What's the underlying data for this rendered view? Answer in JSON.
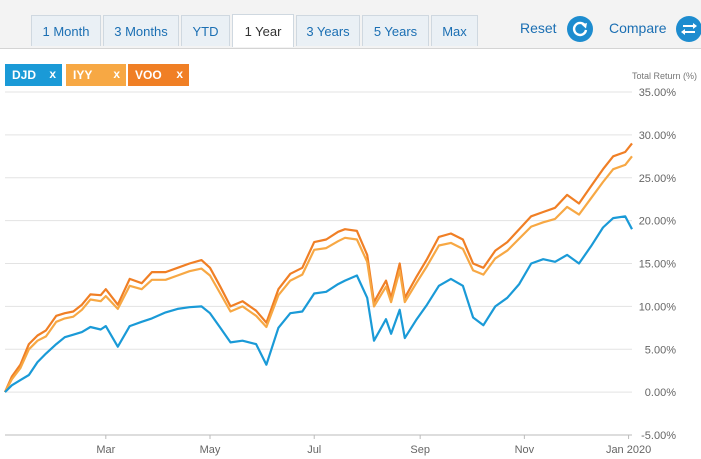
{
  "tabs": [
    {
      "label": "1 Month",
      "active": false
    },
    {
      "label": "3 Months",
      "active": false
    },
    {
      "label": "YTD",
      "active": false
    },
    {
      "label": "1 Year",
      "active": true
    },
    {
      "label": "3 Years",
      "active": false
    },
    {
      "label": "5 Years",
      "active": false
    },
    {
      "label": "Max",
      "active": false
    }
  ],
  "actions": {
    "reset": "Reset",
    "compare": "Compare"
  },
  "legend": [
    {
      "name": "DJD",
      "color": "#1a9ad7",
      "close": "x"
    },
    {
      "name": "IYY",
      "color": "#f7a844",
      "close": "x"
    },
    {
      "name": "VOO",
      "color": "#f07f25",
      "close": "x"
    }
  ],
  "chart_data": {
    "type": "line",
    "ylabel": "Total Return (%)",
    "ylim": [
      -5,
      35
    ],
    "y_ticks": [
      "35.00%",
      "30.00%",
      "25.00%",
      "20.00%",
      "15.00%",
      "10.00%",
      "5.00%",
      "0.00%",
      "-5.00%"
    ],
    "x_tick_labels": [
      "Mar",
      "May",
      "Jul",
      "Sep",
      "Nov",
      "Jan 2020"
    ],
    "x_range": [
      "2019-01-01",
      "2020-01-03"
    ],
    "x_ticks": [
      "2019-03-01",
      "2019-05-01",
      "2019-07-01",
      "2019-09-01",
      "2019-11-01",
      "2020-01-01"
    ],
    "grid": true,
    "series": [
      {
        "name": "VOO",
        "color": "#f07f25",
        "points": [
          [
            "2019-01-01",
            0.0
          ],
          [
            "2019-01-05",
            1.8
          ],
          [
            "2019-01-10",
            3.2
          ],
          [
            "2019-01-15",
            5.6
          ],
          [
            "2019-01-20",
            6.6
          ],
          [
            "2019-01-25",
            7.2
          ],
          [
            "2019-01-31",
            8.9
          ],
          [
            "2019-02-05",
            9.2
          ],
          [
            "2019-02-10",
            9.4
          ],
          [
            "2019-02-15",
            10.2
          ],
          [
            "2019-02-20",
            11.4
          ],
          [
            "2019-02-26",
            11.3
          ],
          [
            "2019-03-01",
            12.0
          ],
          [
            "2019-03-08",
            10.2
          ],
          [
            "2019-03-15",
            13.2
          ],
          [
            "2019-03-22",
            12.7
          ],
          [
            "2019-03-28",
            14.0
          ],
          [
            "2019-04-05",
            14.0
          ],
          [
            "2019-04-12",
            14.5
          ],
          [
            "2019-04-19",
            15.0
          ],
          [
            "2019-04-26",
            15.4
          ],
          [
            "2019-05-01",
            14.5
          ],
          [
            "2019-05-07",
            12.3
          ],
          [
            "2019-05-13",
            10.0
          ],
          [
            "2019-05-20",
            10.6
          ],
          [
            "2019-05-28",
            9.5
          ],
          [
            "2019-06-03",
            8.1
          ],
          [
            "2019-06-10",
            12.0
          ],
          [
            "2019-06-17",
            13.8
          ],
          [
            "2019-06-24",
            14.5
          ],
          [
            "2019-07-01",
            17.5
          ],
          [
            "2019-07-08",
            17.8
          ],
          [
            "2019-07-15",
            18.7
          ],
          [
            "2019-07-19",
            19.0
          ],
          [
            "2019-07-26",
            18.8
          ],
          [
            "2019-08-01",
            16.0
          ],
          [
            "2019-08-05",
            10.5
          ],
          [
            "2019-08-12",
            13.0
          ],
          [
            "2019-08-15",
            11.0
          ],
          [
            "2019-08-20",
            15.0
          ],
          [
            "2019-08-23",
            11.0
          ],
          [
            "2019-08-30",
            13.5
          ],
          [
            "2019-09-05",
            15.5
          ],
          [
            "2019-09-12",
            18.1
          ],
          [
            "2019-09-19",
            18.5
          ],
          [
            "2019-09-26",
            17.8
          ],
          [
            "2019-10-02",
            15.0
          ],
          [
            "2019-10-08",
            14.5
          ],
          [
            "2019-10-15",
            16.5
          ],
          [
            "2019-10-22",
            17.5
          ],
          [
            "2019-10-29",
            19.0
          ],
          [
            "2019-11-05",
            20.5
          ],
          [
            "2019-11-12",
            21.0
          ],
          [
            "2019-11-19",
            21.5
          ],
          [
            "2019-11-26",
            23.0
          ],
          [
            "2019-12-03",
            22.0
          ],
          [
            "2019-12-10",
            24.0
          ],
          [
            "2019-12-17",
            26.0
          ],
          [
            "2019-12-23",
            27.5
          ],
          [
            "2019-12-30",
            28.0
          ],
          [
            "2020-01-03",
            29.0
          ]
        ]
      },
      {
        "name": "IYY",
        "color": "#f7a844",
        "points": [
          [
            "2019-01-01",
            0.0
          ],
          [
            "2019-01-05",
            1.5
          ],
          [
            "2019-01-10",
            2.8
          ],
          [
            "2019-01-15",
            5.0
          ],
          [
            "2019-01-20",
            6.0
          ],
          [
            "2019-01-25",
            6.5
          ],
          [
            "2019-01-31",
            8.2
          ],
          [
            "2019-02-05",
            8.6
          ],
          [
            "2019-02-10",
            8.8
          ],
          [
            "2019-02-15",
            9.6
          ],
          [
            "2019-02-20",
            10.8
          ],
          [
            "2019-02-26",
            10.6
          ],
          [
            "2019-03-01",
            11.2
          ],
          [
            "2019-03-08",
            9.7
          ],
          [
            "2019-03-15",
            12.4
          ],
          [
            "2019-03-22",
            12.0
          ],
          [
            "2019-03-28",
            13.1
          ],
          [
            "2019-04-05",
            13.1
          ],
          [
            "2019-04-12",
            13.6
          ],
          [
            "2019-04-19",
            14.1
          ],
          [
            "2019-04-26",
            14.4
          ],
          [
            "2019-05-01",
            13.6
          ],
          [
            "2019-05-07",
            11.5
          ],
          [
            "2019-05-13",
            9.4
          ],
          [
            "2019-05-20",
            10.0
          ],
          [
            "2019-05-28",
            8.9
          ],
          [
            "2019-06-03",
            7.6
          ],
          [
            "2019-06-10",
            11.3
          ],
          [
            "2019-06-17",
            13.0
          ],
          [
            "2019-06-24",
            13.7
          ],
          [
            "2019-07-01",
            16.6
          ],
          [
            "2019-07-08",
            16.8
          ],
          [
            "2019-07-15",
            17.6
          ],
          [
            "2019-07-19",
            18.0
          ],
          [
            "2019-07-26",
            17.8
          ],
          [
            "2019-08-01",
            15.2
          ],
          [
            "2019-08-05",
            10.0
          ],
          [
            "2019-08-12",
            12.3
          ],
          [
            "2019-08-15",
            10.5
          ],
          [
            "2019-08-20",
            14.2
          ],
          [
            "2019-08-23",
            10.5
          ],
          [
            "2019-08-30",
            12.8
          ],
          [
            "2019-09-05",
            14.7
          ],
          [
            "2019-09-12",
            17.1
          ],
          [
            "2019-09-19",
            17.4
          ],
          [
            "2019-09-26",
            16.7
          ],
          [
            "2019-10-02",
            14.2
          ],
          [
            "2019-10-08",
            13.7
          ],
          [
            "2019-10-15",
            15.6
          ],
          [
            "2019-10-22",
            16.5
          ],
          [
            "2019-10-29",
            17.9
          ],
          [
            "2019-11-05",
            19.3
          ],
          [
            "2019-11-12",
            19.8
          ],
          [
            "2019-11-19",
            20.2
          ],
          [
            "2019-11-26",
            21.6
          ],
          [
            "2019-12-03",
            20.7
          ],
          [
            "2019-12-10",
            22.6
          ],
          [
            "2019-12-17",
            24.5
          ],
          [
            "2019-12-23",
            26.0
          ],
          [
            "2019-12-30",
            26.5
          ],
          [
            "2020-01-03",
            27.5
          ]
        ]
      },
      {
        "name": "DJD",
        "color": "#1a9ad7",
        "points": [
          [
            "2019-01-01",
            0.0
          ],
          [
            "2019-01-05",
            0.8
          ],
          [
            "2019-01-10",
            1.4
          ],
          [
            "2019-01-15",
            2.0
          ],
          [
            "2019-01-20",
            3.5
          ],
          [
            "2019-01-25",
            4.5
          ],
          [
            "2019-01-31",
            5.6
          ],
          [
            "2019-02-05",
            6.4
          ],
          [
            "2019-02-10",
            6.7
          ],
          [
            "2019-02-15",
            7.0
          ],
          [
            "2019-02-20",
            7.6
          ],
          [
            "2019-02-26",
            7.3
          ],
          [
            "2019-03-01",
            7.7
          ],
          [
            "2019-03-08",
            5.3
          ],
          [
            "2019-03-15",
            7.7
          ],
          [
            "2019-03-22",
            8.2
          ],
          [
            "2019-03-28",
            8.6
          ],
          [
            "2019-04-05",
            9.3
          ],
          [
            "2019-04-12",
            9.7
          ],
          [
            "2019-04-19",
            9.9
          ],
          [
            "2019-04-26",
            10.0
          ],
          [
            "2019-05-01",
            9.2
          ],
          [
            "2019-05-07",
            7.5
          ],
          [
            "2019-05-13",
            5.8
          ],
          [
            "2019-05-20",
            6.0
          ],
          [
            "2019-05-28",
            5.6
          ],
          [
            "2019-06-03",
            3.2
          ],
          [
            "2019-06-10",
            7.5
          ],
          [
            "2019-06-17",
            9.2
          ],
          [
            "2019-06-24",
            9.4
          ],
          [
            "2019-07-01",
            11.5
          ],
          [
            "2019-07-08",
            11.7
          ],
          [
            "2019-07-15",
            12.6
          ],
          [
            "2019-07-19",
            13.0
          ],
          [
            "2019-07-26",
            13.6
          ],
          [
            "2019-08-01",
            11.0
          ],
          [
            "2019-08-05",
            6.0
          ],
          [
            "2019-08-12",
            8.5
          ],
          [
            "2019-08-15",
            6.8
          ],
          [
            "2019-08-20",
            9.6
          ],
          [
            "2019-08-23",
            6.3
          ],
          [
            "2019-08-30",
            8.5
          ],
          [
            "2019-09-05",
            10.2
          ],
          [
            "2019-09-12",
            12.4
          ],
          [
            "2019-09-19",
            13.2
          ],
          [
            "2019-09-26",
            12.4
          ],
          [
            "2019-10-02",
            8.7
          ],
          [
            "2019-10-08",
            7.8
          ],
          [
            "2019-10-15",
            10.0
          ],
          [
            "2019-10-22",
            11.0
          ],
          [
            "2019-10-29",
            12.6
          ],
          [
            "2019-11-05",
            15.0
          ],
          [
            "2019-11-12",
            15.5
          ],
          [
            "2019-11-19",
            15.2
          ],
          [
            "2019-11-26",
            16.0
          ],
          [
            "2019-12-03",
            15.0
          ],
          [
            "2019-12-10",
            17.0
          ],
          [
            "2019-12-17",
            19.2
          ],
          [
            "2019-12-23",
            20.3
          ],
          [
            "2019-12-30",
            20.5
          ],
          [
            "2020-01-03",
            19.0
          ]
        ]
      }
    ]
  }
}
